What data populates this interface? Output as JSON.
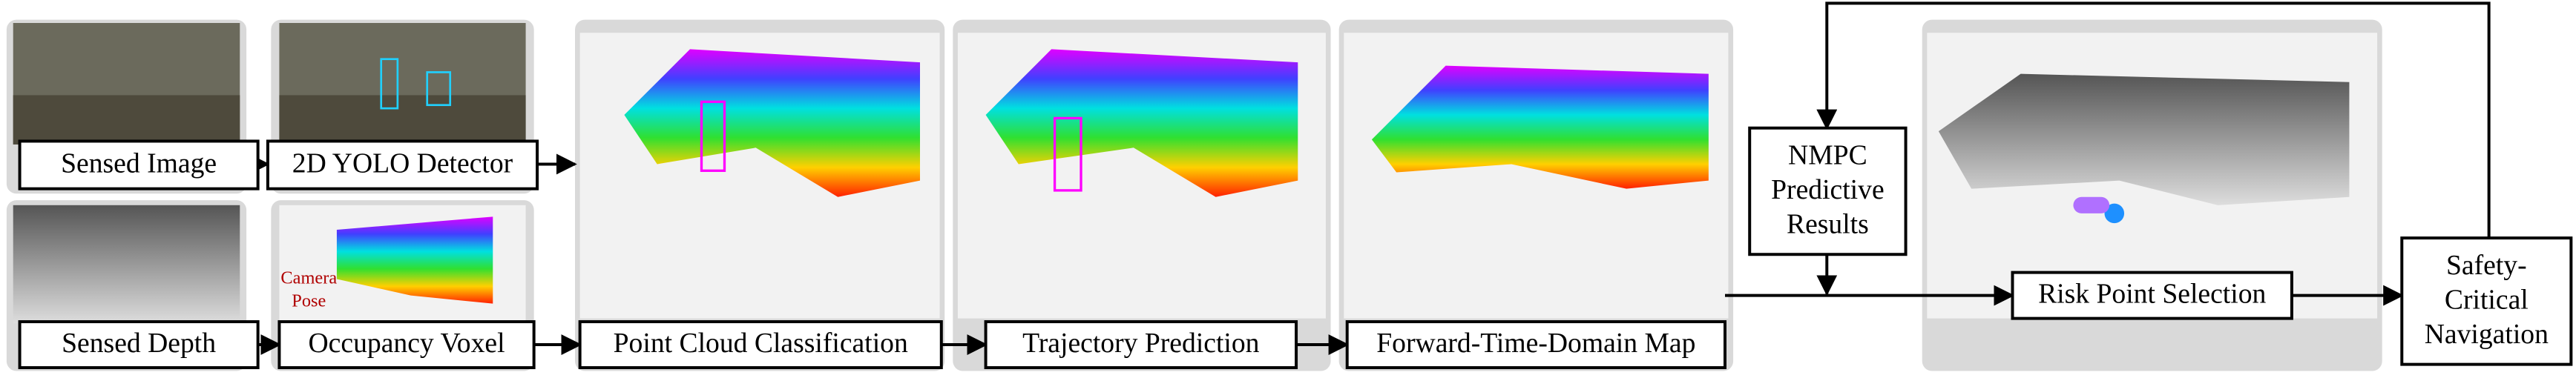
{
  "nodes": [
    {
      "label": "Sensed Image"
    },
    {
      "label": "2D YOLO Detector"
    },
    {
      "label": "Sensed Depth"
    },
    {
      "label": "Occupancy Voxel"
    },
    {
      "label": "Point Cloud Classification"
    },
    {
      "label": "Trajectory Prediction"
    },
    {
      "label": "Forward-Time-Domain Map"
    },
    {
      "label": [
        "NMPC",
        "Predictive",
        "Results"
      ]
    },
    {
      "label": "Risk Point Selection"
    },
    {
      "label": [
        "Safety-",
        "Critical",
        "Navigation"
      ]
    }
  ],
  "annotations": [
    [
      "Camera",
      "Pose"
    ]
  ]
}
